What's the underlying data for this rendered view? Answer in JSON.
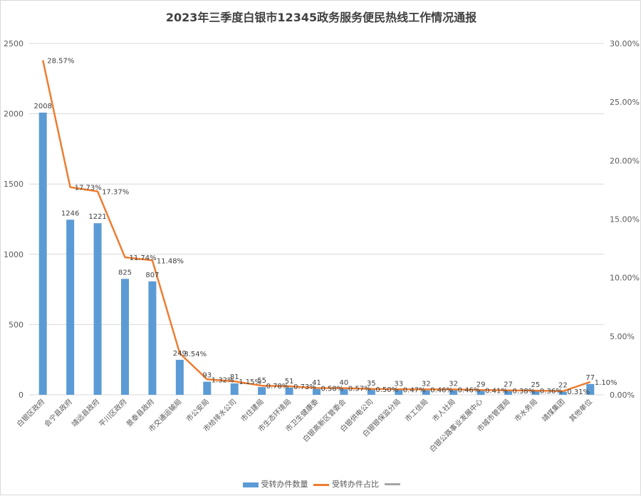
{
  "chart_data": {
    "type": "bar",
    "title": "2023年三季度白银市12345政务服务便民热线工作情况通报",
    "categories": [
      "白银区政府",
      "会宁县政府",
      "靖远县政府",
      "平川区政府",
      "景泰县政府",
      "市交通运输局",
      "市公安局",
      "市给排水公司",
      "市住建局",
      "市生态环境局",
      "市卫生健康委",
      "白银高新区管委会",
      "白银供电公司",
      "白银银保监分局",
      "市工信局",
      "市人社局",
      "白银公路事业发展中心",
      "市城市管理局",
      "市水务局",
      "靖煤集团",
      "其他单位"
    ],
    "series": [
      {
        "name": "受转办件数量",
        "type": "bar",
        "axis": "left",
        "color": "#5b9bd5",
        "values": [
          2008,
          1246,
          1221,
          825,
          807,
          249,
          93,
          81,
          55,
          51,
          41,
          40,
          35,
          33,
          32,
          32,
          29,
          27,
          25,
          22,
          77
        ],
        "labels": [
          "2008",
          "1246",
          "1221",
          "825",
          "807",
          "249",
          "93",
          "81",
          "55",
          "51",
          "41",
          "40",
          "35",
          "33",
          "32",
          "32",
          "29",
          "27",
          "25",
          "22",
          "77"
        ]
      },
      {
        "name": "受转办件占比",
        "type": "line",
        "axis": "right",
        "color": "#ed7d31",
        "values": [
          28.57,
          17.73,
          17.37,
          11.74,
          11.48,
          3.54,
          1.32,
          1.15,
          0.78,
          0.73,
          0.58,
          0.57,
          0.5,
          0.47,
          0.46,
          0.46,
          0.41,
          0.38,
          0.36,
          0.31,
          1.1
        ],
        "labels": [
          "28.57%",
          "17.73%",
          "17.37%",
          "11.74%",
          "11.48%",
          "3.54%",
          "1.32%",
          "1.15%",
          "0.78%",
          "0.73%",
          "0.58%",
          "0.57%",
          "0.50%",
          "0.47%",
          "0.46%",
          "0.46%",
          "0.41%",
          "0.38%",
          "0.36%",
          "0.31%",
          "1.10%"
        ]
      }
    ],
    "y_left": {
      "range": [
        0,
        2500
      ],
      "ticks": [
        "0",
        "500",
        "1000",
        "1500",
        "2000",
        "2500"
      ]
    },
    "y_right": {
      "range": [
        0,
        30
      ],
      "ticks": [
        "0.00%",
        "5.00%",
        "10.00%",
        "15.00%",
        "20.00%",
        "25.00%",
        "30.00%"
      ]
    },
    "grid": true,
    "legend": {
      "position": "bottom",
      "entries": [
        "受转办件数量",
        "受转办件占比"
      ],
      "extra_color": "#a5a5a5"
    }
  }
}
